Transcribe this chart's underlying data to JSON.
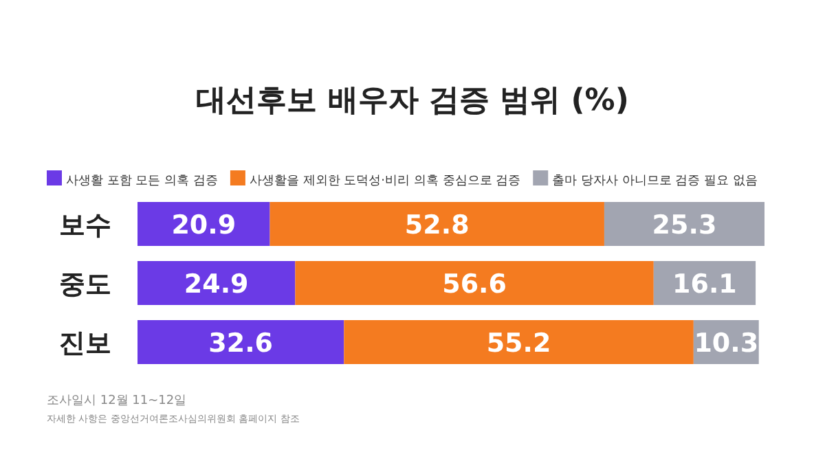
{
  "chart_data": {
    "type": "bar",
    "orientation": "horizontal",
    "stacked": true,
    "data_labels": true,
    "legend": "top left",
    "title": "대선후보 배우자 검증 범위 (%)",
    "categories": [
      "보수",
      "중도",
      "진보"
    ],
    "series": [
      {
        "name": "사생활 포함 모든 의혹 검증",
        "color": "#6b3ae6",
        "values": [
          20.9,
          24.9,
          32.6
        ]
      },
      {
        "name": "사생활을 제외한 도덕성·비리 의혹 중심으로 검증",
        "color": "#f47b20",
        "values": [
          52.8,
          56.6,
          55.2
        ]
      },
      {
        "name": "출마 당자사 아니므로 검증 필요 없음",
        "color": "#a2a5b1",
        "values": [
          25.3,
          16.1,
          10.3
        ]
      }
    ],
    "annotations": [
      "조사일시 12월 11~12일",
      "자세한 사항은 중앙선거여론조사심의위원회 홈페이지 참조"
    ]
  }
}
